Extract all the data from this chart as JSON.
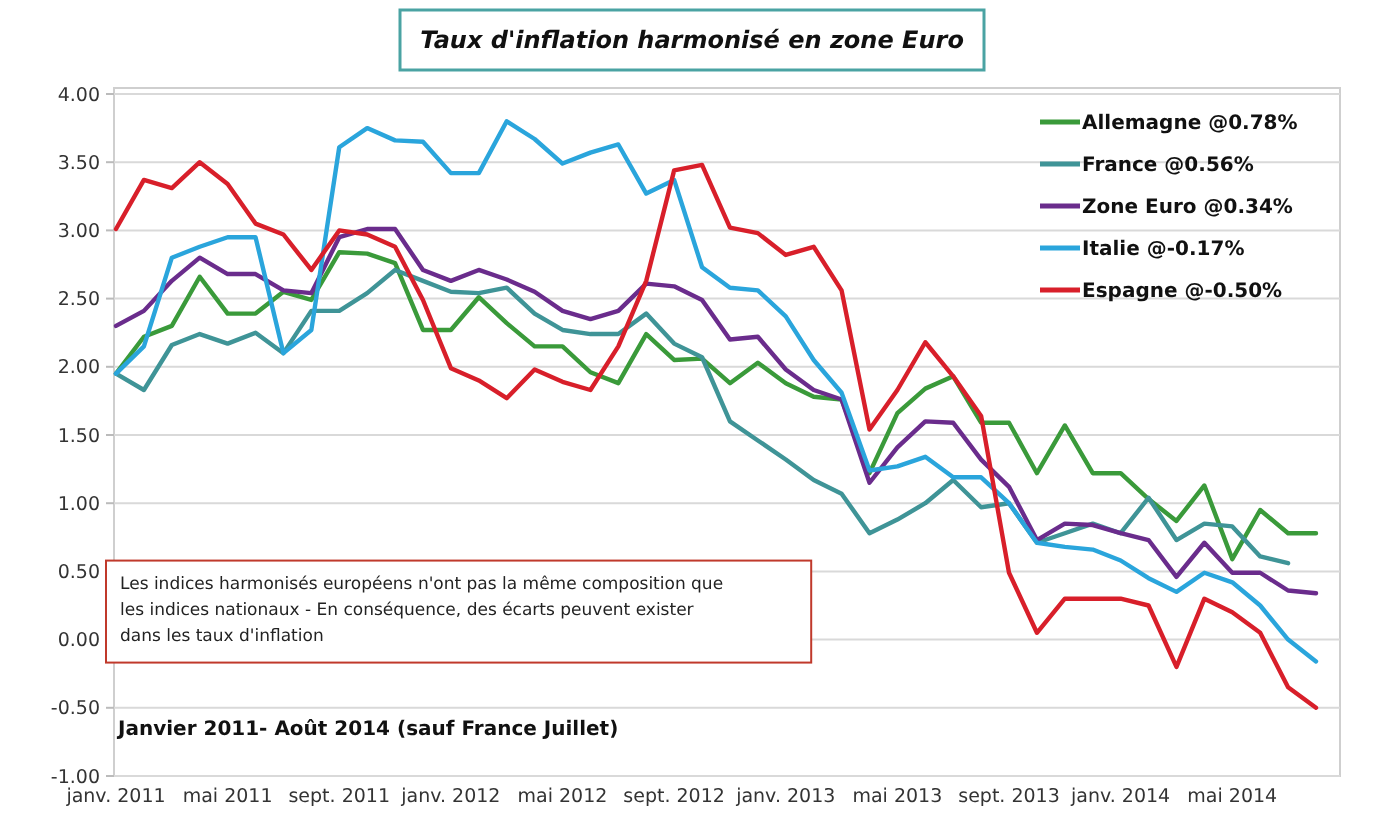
{
  "chart_data": {
    "type": "line",
    "title": "Taux d'inflation harmonisé en zone Euro",
    "categories": [
      "janv. 2011",
      null,
      null,
      null,
      "mai 2011",
      null,
      null,
      null,
      "sept. 2011",
      null,
      null,
      null,
      "janv. 2012",
      null,
      null,
      null,
      "mai 2012",
      null,
      null,
      null,
      "sept. 2012",
      null,
      null,
      null,
      "janv. 2013",
      null,
      null,
      null,
      "mai 2013",
      null,
      null,
      null,
      "sept. 2013",
      null,
      null,
      null,
      "janv. 2014",
      null,
      null,
      null,
      "mai 2014",
      null,
      null,
      null
    ],
    "series": [
      {
        "name": "Allemagne @0.78%",
        "color": "#3a9a3a",
        "values": [
          1.95,
          2.22,
          2.3,
          2.66,
          2.39,
          2.39,
          2.55,
          2.49,
          2.84,
          2.83,
          2.76,
          2.27,
          2.27,
          2.51,
          2.32,
          2.15,
          2.15,
          1.96,
          1.88,
          2.24,
          2.05,
          2.06,
          1.88,
          2.03,
          1.88,
          1.78,
          1.76,
          1.22,
          1.66,
          1.84,
          1.93,
          1.59,
          1.59,
          1.22,
          1.57,
          1.22,
          1.22,
          1.03,
          0.87,
          1.13,
          0.59,
          0.95,
          0.78,
          0.78
        ]
      },
      {
        "name": "France @0.56%",
        "color": "#3f9497",
        "values": [
          1.95,
          1.83,
          2.16,
          2.24,
          2.17,
          2.25,
          2.1,
          2.41,
          2.41,
          2.54,
          2.71,
          2.63,
          2.55,
          2.54,
          2.58,
          2.39,
          2.27,
          2.24,
          2.24,
          2.39,
          2.17,
          2.07,
          1.6,
          1.46,
          1.32,
          1.17,
          1.07,
          0.78,
          0.88,
          1.0,
          1.17,
          0.97,
          1.0,
          0.71,
          0.78,
          0.85,
          0.78,
          1.04,
          0.73,
          0.85,
          0.83,
          0.61,
          0.56,
          null
        ]
      },
      {
        "name": "Zone Euro @0.34%",
        "color": "#6a2c8c",
        "values": [
          2.3,
          2.41,
          2.63,
          2.8,
          2.68,
          2.68,
          2.56,
          2.54,
          2.95,
          3.01,
          3.01,
          2.71,
          2.63,
          2.71,
          2.64,
          2.55,
          2.41,
          2.35,
          2.41,
          2.61,
          2.59,
          2.49,
          2.2,
          2.22,
          1.98,
          1.83,
          1.76,
          1.15,
          1.41,
          1.6,
          1.59,
          1.32,
          1.12,
          0.73,
          0.85,
          0.84,
          0.78,
          0.73,
          0.46,
          0.71,
          0.49,
          0.49,
          0.36,
          0.34
        ]
      },
      {
        "name": "Italie @-0.17%",
        "color": "#2aa5dc",
        "values": [
          1.95,
          2.15,
          2.8,
          2.88,
          2.95,
          2.95,
          2.1,
          2.27,
          3.61,
          3.75,
          3.66,
          3.65,
          3.42,
          3.42,
          3.8,
          3.67,
          3.49,
          3.57,
          3.63,
          3.27,
          3.37,
          2.73,
          2.58,
          2.56,
          2.37,
          2.05,
          1.81,
          1.24,
          1.27,
          1.34,
          1.19,
          1.19,
          1.0,
          0.71,
          0.68,
          0.66,
          0.58,
          0.45,
          0.35,
          0.49,
          0.42,
          0.25,
          0.0,
          -0.16
        ]
      },
      {
        "name": "Espagne @-0.50%",
        "color": "#d81f2a",
        "values": [
          3.01,
          3.37,
          3.31,
          3.5,
          3.34,
          3.05,
          2.97,
          2.71,
          3.0,
          2.97,
          2.88,
          2.49,
          1.99,
          1.9,
          1.77,
          1.98,
          1.89,
          1.83,
          2.15,
          2.63,
          3.44,
          3.48,
          3.02,
          2.98,
          2.82,
          2.88,
          2.56,
          1.54,
          1.83,
          2.18,
          1.93,
          1.64,
          0.49,
          0.05,
          0.3,
          0.3,
          0.3,
          0.25,
          -0.2,
          0.3,
          0.2,
          0.05,
          -0.35,
          -0.5
        ]
      }
    ],
    "ylim": [
      -1,
      4
    ],
    "yticks": [
      {
        "value": -1,
        "label": "-1.00"
      },
      {
        "value": -0.5,
        "label": "-0.50"
      },
      {
        "value": 0,
        "label": "0.00"
      },
      {
        "value": 0.5,
        "label": "0.50"
      },
      {
        "value": 1,
        "label": "1.00"
      },
      {
        "value": 1.5,
        "label": "1.50"
      },
      {
        "value": 2,
        "label": "2.00"
      },
      {
        "value": 2.5,
        "label": "2.50"
      },
      {
        "value": 3,
        "label": "3.00"
      },
      {
        "value": 3.5,
        "label": "3.50"
      },
      {
        "value": 4,
        "label": "4.00"
      }
    ],
    "grid": "y",
    "legend": "top right",
    "marker": "none",
    "line_style": "solid",
    "annotations": [
      "Les indices harmonisés européens n'ont pas la même composition que les indices nationaux - En conséquence, des écarts peuvent exister dans les taux d'inflation",
      "Janvier 2011- Août 2014 (sauf France Juillet)"
    ]
  }
}
